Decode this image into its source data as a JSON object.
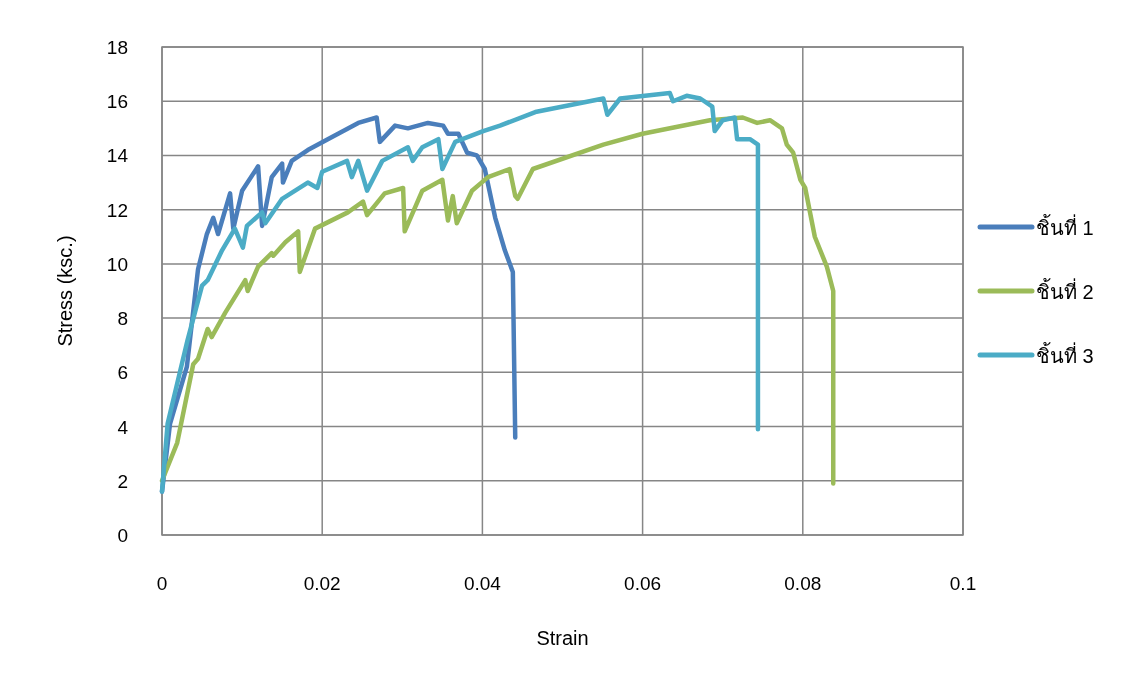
{
  "chart_data": {
    "type": "line",
    "xlabel": "Strain",
    "ylabel": "Stress (ksc.)",
    "xlim": [
      0,
      0.1
    ],
    "ylim": [
      0,
      18
    ],
    "xticks": [
      0,
      0.02,
      0.04,
      0.06,
      0.08,
      0.1
    ],
    "yticks": [
      0,
      2,
      4,
      6,
      8,
      10,
      12,
      14,
      16,
      18
    ],
    "grid": true,
    "legend": "right",
    "series": [
      {
        "name": "ชิ้นที่ 1",
        "color": "#4a7ebb",
        "x": [
          0,
          0.001,
          0.0031,
          0.0045,
          0.0056,
          0.0064,
          0.007,
          0.0085,
          0.0089,
          0.01,
          0.012,
          0.0125,
          0.0137,
          0.015,
          0.0151,
          0.0162,
          0.0182,
          0.0207,
          0.0245,
          0.0268,
          0.0272,
          0.0291,
          0.0307,
          0.0332,
          0.0351,
          0.0357,
          0.037,
          0.0381,
          0.0393,
          0.0403,
          0.0416,
          0.0428,
          0.0438,
          0.0441
        ],
        "values": [
          1.6,
          4.1,
          6.2,
          9.8,
          11.1,
          11.7,
          11.1,
          12.6,
          11.3,
          12.7,
          13.6,
          11.4,
          13.2,
          13.7,
          13.0,
          13.8,
          14.2,
          14.6,
          15.2,
          15.4,
          14.5,
          15.1,
          15.0,
          15.2,
          15.1,
          14.8,
          14.8,
          14.1,
          14.0,
          13.5,
          11.7,
          10.5,
          9.7,
          3.6
        ]
      },
      {
        "name": "ชิ้นที่ 2",
        "color": "#9bbb59",
        "x": [
          0,
          0.0019,
          0.0039,
          0.0045,
          0.0057,
          0.0062,
          0.0079,
          0.0104,
          0.0107,
          0.012,
          0.0137,
          0.0139,
          0.0154,
          0.017,
          0.0172,
          0.0191,
          0.0232,
          0.0251,
          0.0256,
          0.0278,
          0.0301,
          0.0303,
          0.0325,
          0.035,
          0.0357,
          0.0363,
          0.0368,
          0.0387,
          0.0407,
          0.0434,
          0.0441,
          0.0444,
          0.0463,
          0.0551,
          0.06,
          0.0684,
          0.0725,
          0.0743,
          0.0759,
          0.0774,
          0.078,
          0.0788,
          0.0797,
          0.0803,
          0.0815,
          0.083,
          0.0838,
          0.0838
        ],
        "values": [
          2.0,
          3.4,
          6.3,
          6.5,
          7.6,
          7.3,
          8.2,
          9.4,
          9.0,
          9.9,
          10.4,
          10.3,
          10.8,
          11.2,
          9.7,
          11.3,
          11.9,
          12.3,
          11.8,
          12.6,
          12.8,
          11.2,
          12.7,
          13.1,
          11.6,
          12.5,
          11.5,
          12.7,
          13.2,
          13.5,
          12.5,
          12.4,
          13.5,
          14.4,
          14.8,
          15.3,
          15.4,
          15.2,
          15.3,
          15.0,
          14.4,
          14.1,
          13.1,
          12.8,
          11.0,
          9.9,
          9.0,
          1.9
        ]
      },
      {
        "name": "ชิ้นที่ 3",
        "color": "#4bacc6",
        "x": [
          0,
          0.0007,
          0.0032,
          0.005,
          0.0057,
          0.0075,
          0.0091,
          0.0101,
          0.0106,
          0.0125,
          0.0129,
          0.015,
          0.0182,
          0.0194,
          0.02,
          0.0231,
          0.0237,
          0.0245,
          0.0256,
          0.0275,
          0.0307,
          0.0313,
          0.0325,
          0.0345,
          0.035,
          0.0366,
          0.0401,
          0.0422,
          0.0466,
          0.0551,
          0.0556,
          0.0572,
          0.0634,
          0.0638,
          0.0655,
          0.0672,
          0.0687,
          0.069,
          0.07,
          0.0715,
          0.0718,
          0.0734,
          0.0744,
          0.0744
        ],
        "values": [
          1.6,
          4.1,
          7.2,
          9.2,
          9.4,
          10.5,
          11.3,
          10.6,
          11.4,
          11.9,
          11.5,
          12.4,
          13.0,
          12.8,
          13.4,
          13.8,
          13.2,
          13.8,
          12.7,
          13.8,
          14.3,
          13.8,
          14.3,
          14.6,
          13.5,
          14.5,
          14.9,
          15.1,
          15.6,
          16.1,
          15.5,
          16.1,
          16.3,
          16.0,
          16.2,
          16.1,
          15.8,
          14.9,
          15.3,
          15.4,
          14.6,
          14.6,
          14.4,
          3.9
        ]
      }
    ]
  }
}
